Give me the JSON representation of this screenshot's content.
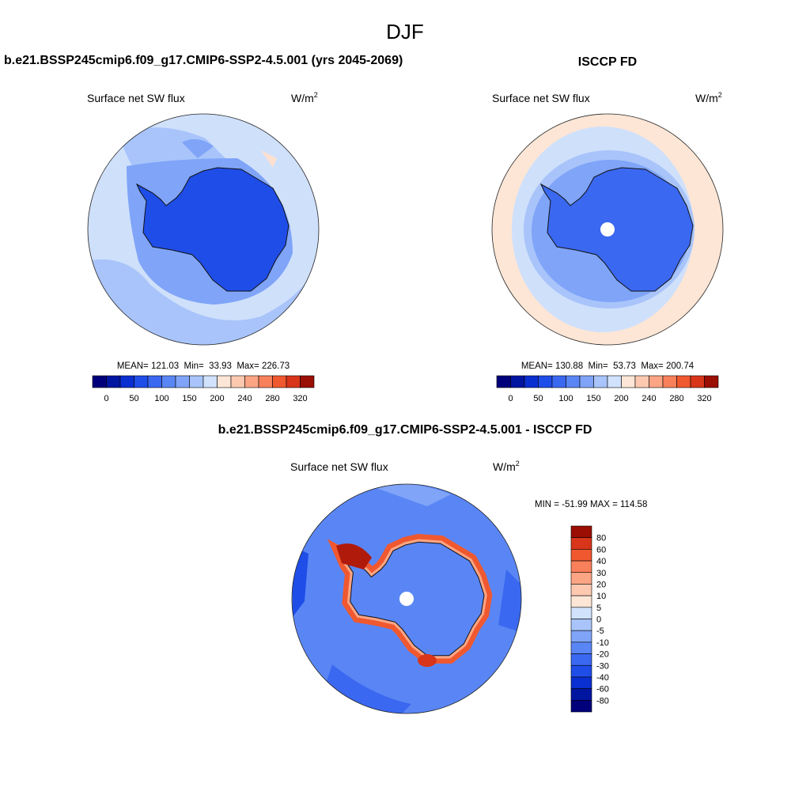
{
  "title": "DJF",
  "panels": [
    {
      "title": "b.e21.BSSP245cmip6.f09_g17.CMIP6-SSP2-4.5.001 (yrs 2045-2069)",
      "variable": "Surface net SW flux",
      "units": "W/m",
      "units_sup": "2",
      "stats": "MEAN= 121.03  Min=  33.93  Max= 226.73",
      "colorbar_labels": [
        "0",
        "50",
        "100",
        "150",
        "200",
        "240",
        "280",
        "320"
      ]
    },
    {
      "title": "ISCCP FD",
      "variable": "Surface net SW flux",
      "units": "W/m",
      "units_sup": "2",
      "stats": "MEAN= 130.88  Min=  53.73  Max= 200.74",
      "colorbar_labels": [
        "0",
        "50",
        "100",
        "150",
        "200",
        "240",
        "280",
        "320"
      ]
    },
    {
      "title": "b.e21.BSSP245cmip6.f09_g17.CMIP6-SSP2-4.5.001 - ISCCP FD",
      "variable": "Surface net SW flux",
      "units": "W/m",
      "units_sup": "2",
      "stats": "MIN = -51.99 MAX = 114.58",
      "colorbar_labels": [
        "80",
        "60",
        "40",
        "30",
        "20",
        "10",
        "5",
        "0",
        "-5",
        "-10",
        "-20",
        "-30",
        "-40",
        "-60",
        "-80"
      ]
    }
  ]
}
